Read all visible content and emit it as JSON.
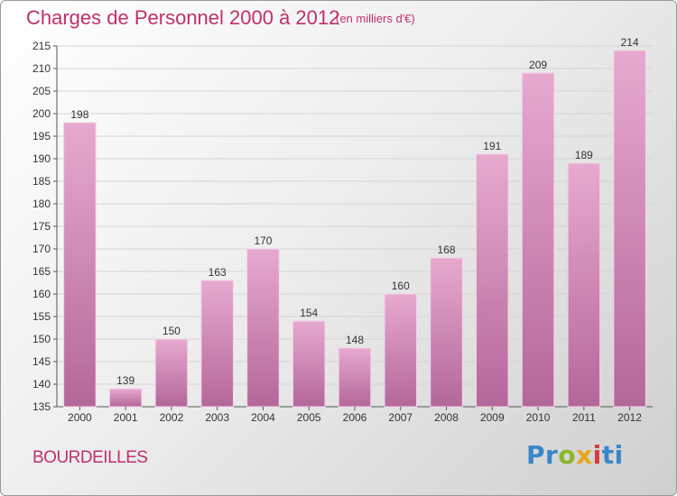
{
  "title": "Charges de Personnel 2000 à 2012",
  "subtitle": "(en milliers d'€)",
  "commune": "BOURDEILLES",
  "logo": {
    "letters": [
      "Pr",
      "o",
      "x",
      "i",
      "ti"
    ]
  },
  "colors": {
    "accent": "#c0306b",
    "bar_top": "#e7a9cf",
    "bar_bottom": "#b4679a",
    "bar_edge": "#f3d3e6"
  },
  "chart_data": {
    "type": "bar",
    "categories": [
      "2000",
      "2001",
      "2002",
      "2003",
      "2004",
      "2005",
      "2006",
      "2007",
      "2008",
      "2009",
      "2010",
      "2011",
      "2012"
    ],
    "values": [
      198,
      139,
      150,
      163,
      170,
      154,
      148,
      160,
      168,
      191,
      209,
      189,
      214
    ],
    "ylim": [
      135,
      215
    ],
    "yticks": [
      135,
      140,
      145,
      150,
      155,
      160,
      165,
      170,
      175,
      180,
      185,
      190,
      195,
      200,
      205,
      210,
      215
    ],
    "grid": true,
    "data_labels": true
  }
}
